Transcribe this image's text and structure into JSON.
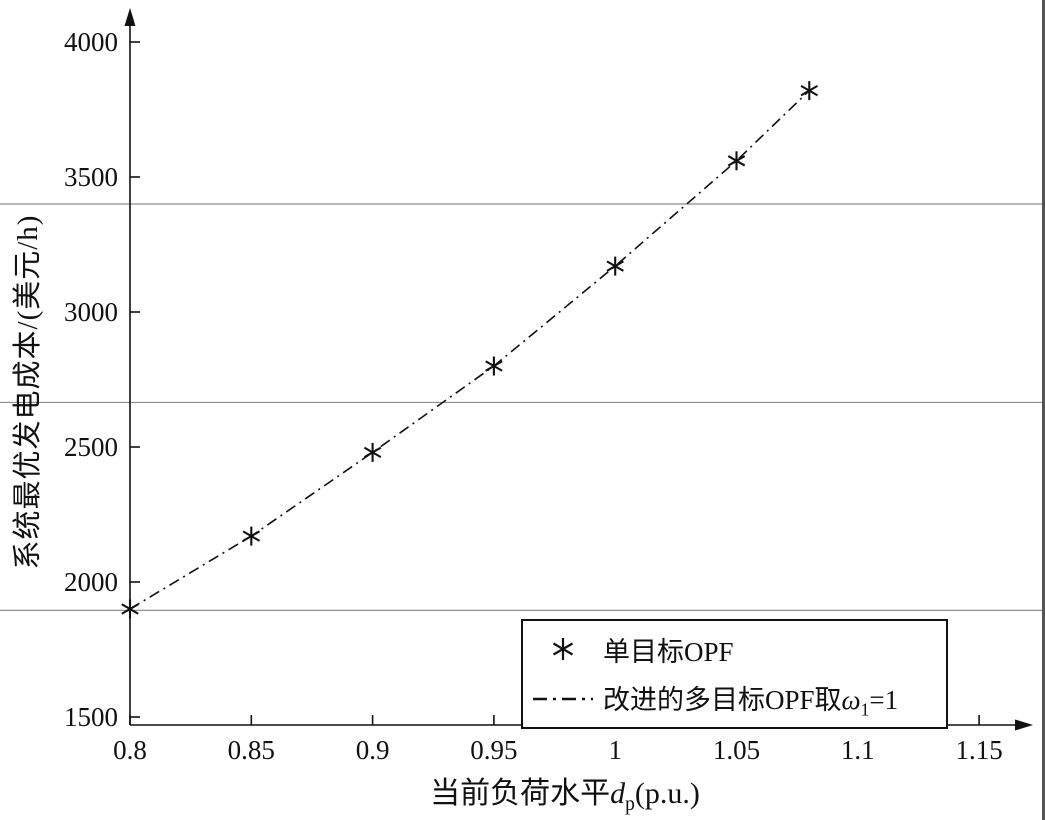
{
  "figure": {
    "ylabel": {
      "text": "系统最优发电成本/(美元/h)"
    },
    "xlabel": {
      "prefix": "当前负荷水平",
      "var": "d",
      "sub": "p",
      "suffix": "(p.u.)"
    },
    "legend_entries": [
      {
        "marker": "asterisk",
        "label": "单目标OPF"
      },
      {
        "marker": "dash-dot-line",
        "prefix": "改进的多目标OPF取",
        "var": "ω",
        "sub": "1",
        "suffix": "=1"
      }
    ]
  },
  "chart_data": {
    "type": "line",
    "title": "",
    "xlabel": "当前负荷水平d_p(p.u.)",
    "ylabel": "系统最优发电成本/(美元/h)",
    "x": [
      0.8,
      0.85,
      0.9,
      0.95,
      1.0,
      1.05,
      1.08
    ],
    "series": [
      {
        "name": "单目标OPF",
        "marker": "asterisk",
        "line_style": "dash-dot",
        "values": [
          1900,
          2170,
          2480,
          2800,
          3170,
          3560,
          3820
        ]
      }
    ],
    "x_ticks": [
      0.8,
      0.85,
      0.9,
      0.95,
      1,
      1.05,
      1.1,
      1.15
    ],
    "y_ticks": [
      1500,
      2000,
      2500,
      3000,
      3500,
      4000
    ],
    "xlim": [
      0.8,
      1.17
    ],
    "ylim": [
      1500,
      4100
    ],
    "grid": false,
    "legend_position": "lower-right",
    "legend": [
      "单目标OPF",
      "改进的多目标OPF取ω₁=1"
    ],
    "artifact_hlines_y": [
      3400,
      2665,
      1895
    ],
    "axis_color": "#111111",
    "background_color": "#fefefe"
  }
}
